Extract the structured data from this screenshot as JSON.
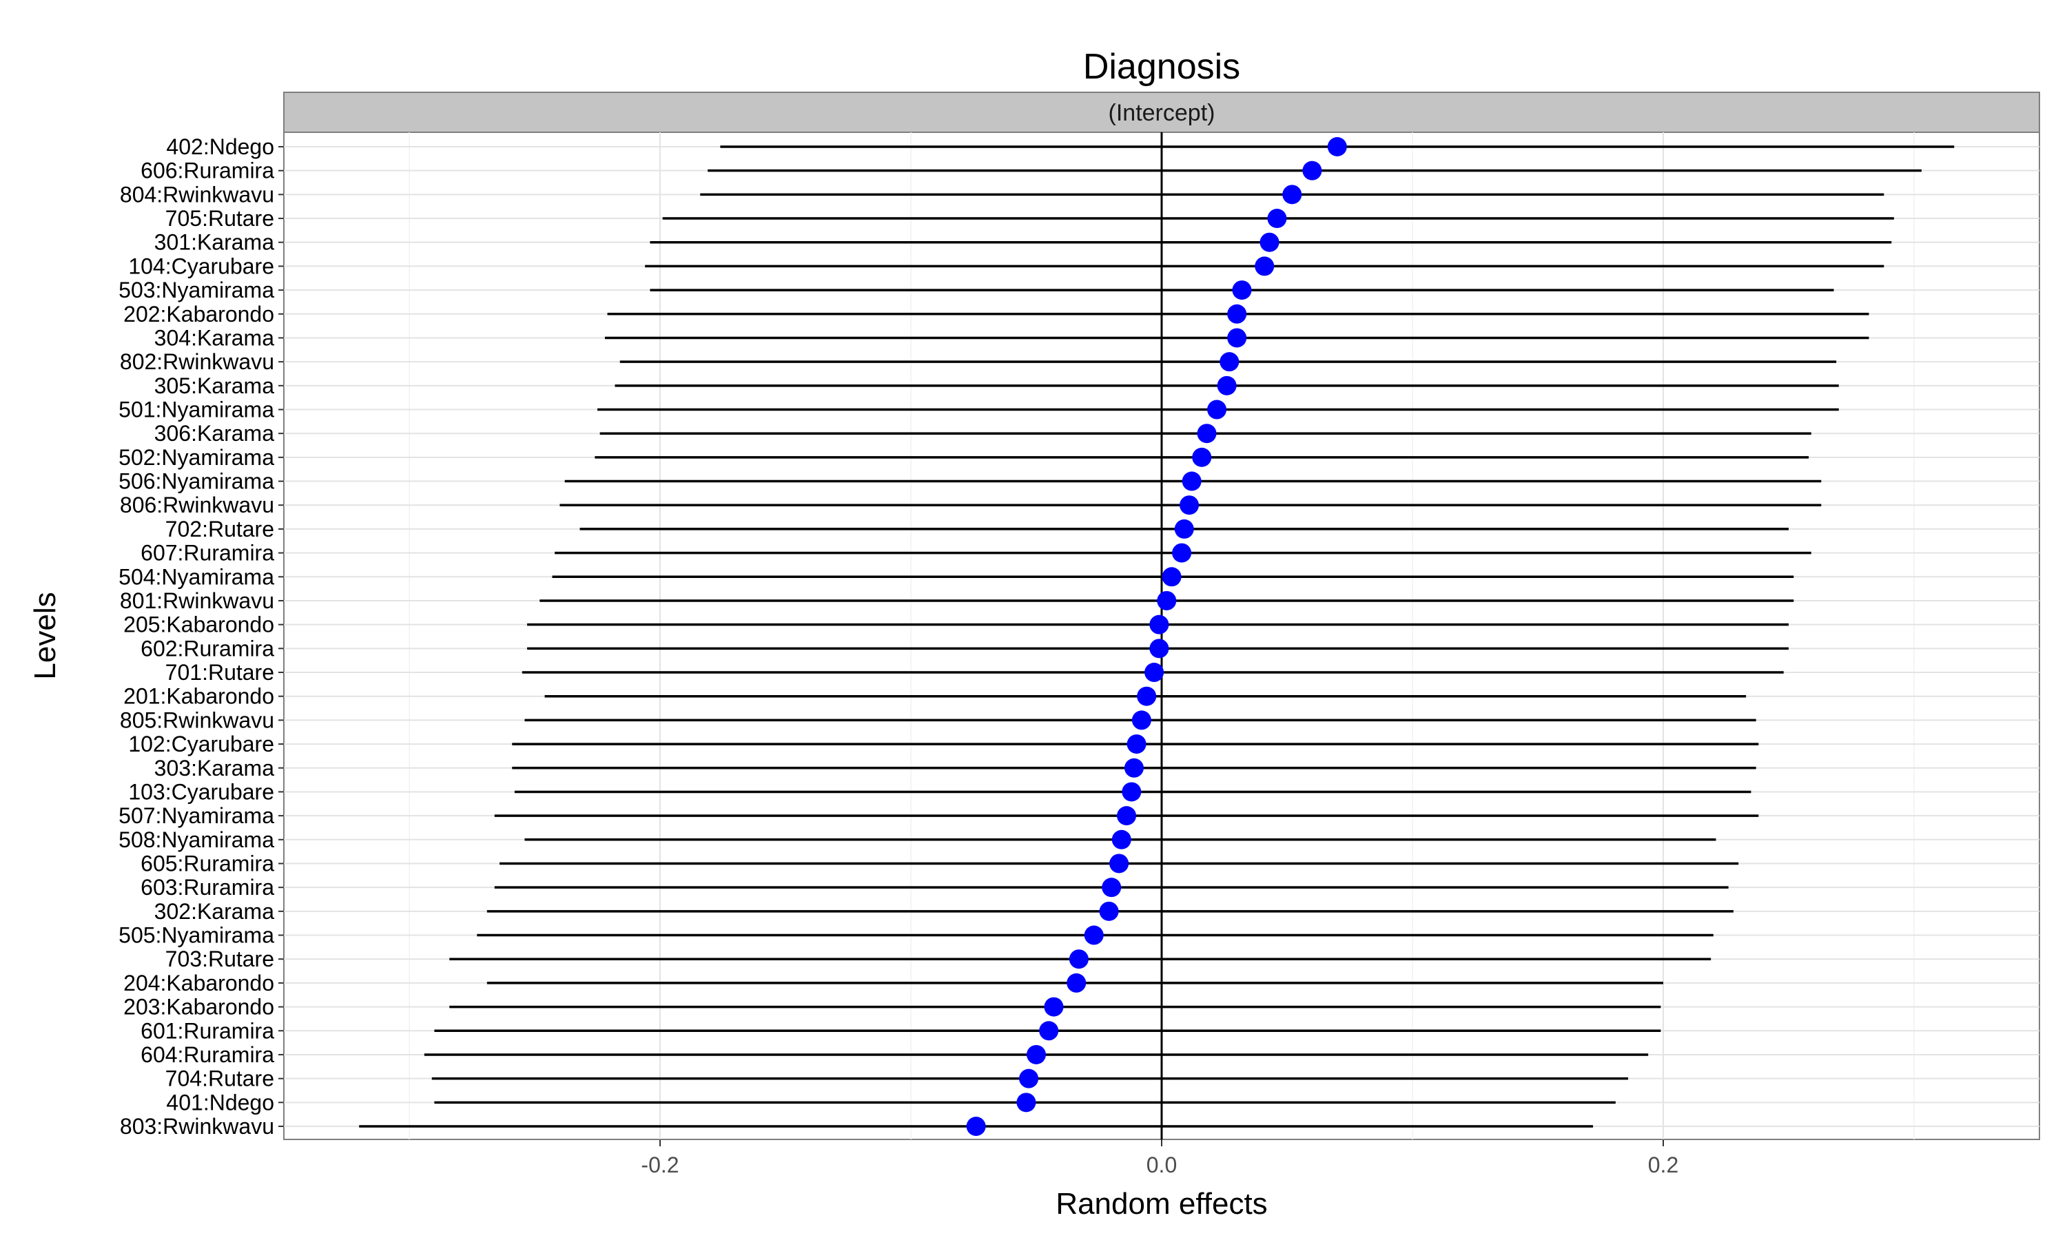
{
  "chart_data": {
    "type": "scatter",
    "title": "Diagnosis",
    "panel_label": "(Intercept)",
    "xlabel": "Random effects",
    "ylabel": "Levels",
    "xlim": [
      -0.35,
      0.35
    ],
    "x_ticks": [
      -0.2,
      0.0,
      0.2
    ],
    "x_tick_labels": [
      "-0.2",
      "0.0",
      "0.2"
    ],
    "grid": true,
    "reference_line_x": 0,
    "point_color": "#0000ff",
    "interval_color": "#000000",
    "points": [
      {
        "level": "402:Ndego",
        "estimate": 0.07,
        "lower": -0.176,
        "upper": 0.316
      },
      {
        "level": "606:Ruramira",
        "estimate": 0.06,
        "lower": -0.181,
        "upper": 0.303
      },
      {
        "level": "804:Rwinkwavu",
        "estimate": 0.052,
        "lower": -0.184,
        "upper": 0.288
      },
      {
        "level": "705:Rutare",
        "estimate": 0.046,
        "lower": -0.199,
        "upper": 0.292
      },
      {
        "level": "301:Karama",
        "estimate": 0.043,
        "lower": -0.204,
        "upper": 0.291
      },
      {
        "level": "104:Cyarubare",
        "estimate": 0.041,
        "lower": -0.206,
        "upper": 0.288
      },
      {
        "level": "503:Nyamirama",
        "estimate": 0.032,
        "lower": -0.204,
        "upper": 0.268
      },
      {
        "level": "202:Kabarondo",
        "estimate": 0.03,
        "lower": -0.221,
        "upper": 0.282
      },
      {
        "level": "304:Karama",
        "estimate": 0.03,
        "lower": -0.222,
        "upper": 0.282
      },
      {
        "level": "802:Rwinkwavu",
        "estimate": 0.027,
        "lower": -0.216,
        "upper": 0.269
      },
      {
        "level": "305:Karama",
        "estimate": 0.026,
        "lower": -0.218,
        "upper": 0.27
      },
      {
        "level": "501:Nyamirama",
        "estimate": 0.022,
        "lower": -0.225,
        "upper": 0.27
      },
      {
        "level": "306:Karama",
        "estimate": 0.018,
        "lower": -0.224,
        "upper": 0.259
      },
      {
        "level": "502:Nyamirama",
        "estimate": 0.016,
        "lower": -0.226,
        "upper": 0.258
      },
      {
        "level": "506:Nyamirama",
        "estimate": 0.012,
        "lower": -0.238,
        "upper": 0.263
      },
      {
        "level": "806:Rwinkwavu",
        "estimate": 0.011,
        "lower": -0.24,
        "upper": 0.263
      },
      {
        "level": "702:Rutare",
        "estimate": 0.009,
        "lower": -0.232,
        "upper": 0.25
      },
      {
        "level": "607:Ruramira",
        "estimate": 0.008,
        "lower": -0.242,
        "upper": 0.259
      },
      {
        "level": "504:Nyamirama",
        "estimate": 0.004,
        "lower": -0.243,
        "upper": 0.252
      },
      {
        "level": "801:Rwinkwavu",
        "estimate": 0.002,
        "lower": -0.248,
        "upper": 0.252
      },
      {
        "level": "205:Kabarondo",
        "estimate": -0.001,
        "lower": -0.253,
        "upper": 0.25
      },
      {
        "level": "602:Ruramira",
        "estimate": -0.001,
        "lower": -0.253,
        "upper": 0.25
      },
      {
        "level": "701:Rutare",
        "estimate": -0.003,
        "lower": -0.255,
        "upper": 0.248
      },
      {
        "level": "201:Kabarondo",
        "estimate": -0.006,
        "lower": -0.246,
        "upper": 0.233
      },
      {
        "level": "805:Rwinkwavu",
        "estimate": -0.008,
        "lower": -0.254,
        "upper": 0.237
      },
      {
        "level": "102:Cyarubare",
        "estimate": -0.01,
        "lower": -0.259,
        "upper": 0.238
      },
      {
        "level": "303:Karama",
        "estimate": -0.011,
        "lower": -0.259,
        "upper": 0.237
      },
      {
        "level": "103:Cyarubare",
        "estimate": -0.012,
        "lower": -0.258,
        "upper": 0.235
      },
      {
        "level": "507:Nyamirama",
        "estimate": -0.014,
        "lower": -0.266,
        "upper": 0.238
      },
      {
        "level": "508:Nyamirama",
        "estimate": -0.016,
        "lower": -0.254,
        "upper": 0.221
      },
      {
        "level": "605:Ruramira",
        "estimate": -0.017,
        "lower": -0.264,
        "upper": 0.23
      },
      {
        "level": "603:Ruramira",
        "estimate": -0.02,
        "lower": -0.266,
        "upper": 0.226
      },
      {
        "level": "302:Karama",
        "estimate": -0.021,
        "lower": -0.269,
        "upper": 0.228
      },
      {
        "level": "505:Nyamirama",
        "estimate": -0.027,
        "lower": -0.273,
        "upper": 0.22
      },
      {
        "level": "703:Rutare",
        "estimate": -0.033,
        "lower": -0.284,
        "upper": 0.219
      },
      {
        "level": "204:Kabarondo",
        "estimate": -0.034,
        "lower": -0.269,
        "upper": 0.2
      },
      {
        "level": "203:Kabarondo",
        "estimate": -0.043,
        "lower": -0.284,
        "upper": 0.199
      },
      {
        "level": "601:Ruramira",
        "estimate": -0.045,
        "lower": -0.29,
        "upper": 0.199
      },
      {
        "level": "604:Ruramira",
        "estimate": -0.05,
        "lower": -0.294,
        "upper": 0.194
      },
      {
        "level": "704:Rutare",
        "estimate": -0.053,
        "lower": -0.291,
        "upper": 0.186
      },
      {
        "level": "401:Ndego",
        "estimate": -0.054,
        "lower": -0.29,
        "upper": 0.181
      },
      {
        "level": "803:Rwinkwavu",
        "estimate": -0.074,
        "lower": -0.32,
        "upper": 0.172
      }
    ]
  }
}
